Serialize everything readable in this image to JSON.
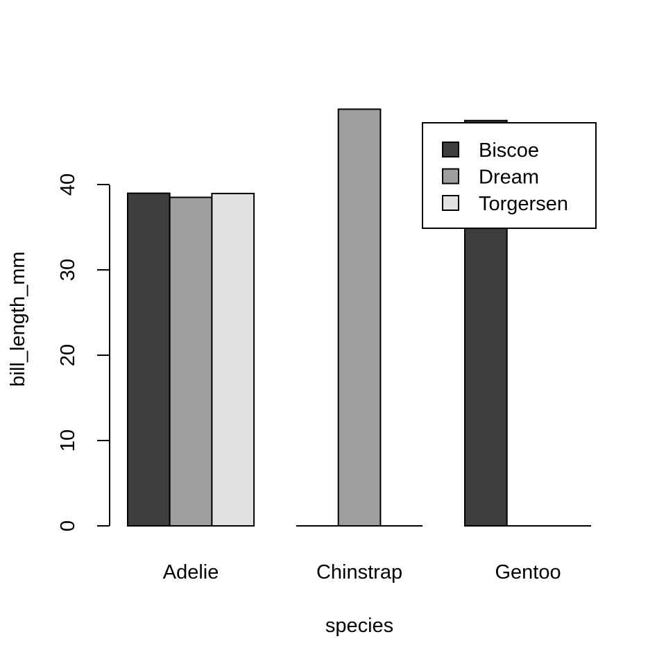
{
  "chart_data": {
    "type": "bar",
    "layout": "grouped",
    "title": "",
    "xlabel": "species",
    "ylabel": "bill_length_mm",
    "categories": [
      "Adelie",
      "Chinstrap",
      "Gentoo"
    ],
    "series": [
      {
        "name": "Biscoe",
        "color": "#3d3d3d",
        "values": [
          38.98,
          0,
          47.5
        ]
      },
      {
        "name": "Dream",
        "color": "#9e9e9e",
        "values": [
          38.5,
          48.83,
          0
        ]
      },
      {
        "name": "Torgersen",
        "color": "#e2e2e2",
        "values": [
          38.95,
          0,
          0
        ]
      }
    ],
    "yticks": [
      0,
      10,
      20,
      30,
      40
    ],
    "ylim": [
      0,
      50
    ],
    "legend": {
      "position": "top-right",
      "entries": [
        "Biscoe",
        "Dream",
        "Torgersen"
      ]
    },
    "grid": false
  }
}
